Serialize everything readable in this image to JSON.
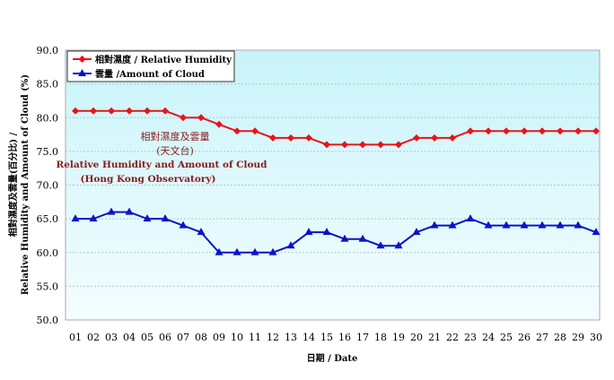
{
  "chart_data": {
    "type": "line",
    "title": "相對濕度及雲量 (天文台)",
    "subtitle": "Relative Humidity and Amount of Cloud (Hong Kong Observatory)",
    "title_lines": [
      "相對濕度及雲量",
      "(天文台)",
      "Relative Humidity and Amount of Cloud",
      "(Hong Kong Observatory)"
    ],
    "xlabel": "日期 / Date",
    "ylabel_lines": [
      "相對濕度及雲量(百分比) /",
      "Relative Humidity and Amount of Cloud (%)"
    ],
    "ylim": [
      50,
      90
    ],
    "yticks": [
      "50.0",
      "55.0",
      "60.0",
      "65.0",
      "70.0",
      "75.0",
      "80.0",
      "85.0",
      "90.0"
    ],
    "categories": [
      "01",
      "02",
      "03",
      "04",
      "05",
      "06",
      "07",
      "08",
      "09",
      "10",
      "11",
      "12",
      "13",
      "14",
      "15",
      "16",
      "17",
      "18",
      "19",
      "20",
      "21",
      "22",
      "23",
      "24",
      "25",
      "26",
      "27",
      "28",
      "29",
      "30"
    ],
    "grid": true,
    "legend_position": "top-left",
    "series": [
      {
        "name": "相對濕度 / Relative Humidity",
        "color": "#e8141a",
        "marker": "diamond",
        "values": [
          81,
          81,
          81,
          81,
          81,
          81,
          80,
          80,
          79,
          78,
          78,
          77,
          77,
          77,
          76,
          76,
          76,
          76,
          76,
          77,
          77,
          77,
          78,
          78,
          78,
          78,
          78,
          78,
          78,
          78
        ]
      },
      {
        "name": "雲量 /Amount of Cloud",
        "color": "#0a14c8",
        "marker": "triangle",
        "values": [
          65,
          65,
          66,
          66,
          65,
          65,
          64,
          63,
          60,
          60,
          60,
          60,
          61,
          63,
          63,
          62,
          62,
          61,
          61,
          63,
          64,
          64,
          65,
          64,
          64,
          64,
          64,
          64,
          64,
          63
        ]
      }
    ]
  }
}
